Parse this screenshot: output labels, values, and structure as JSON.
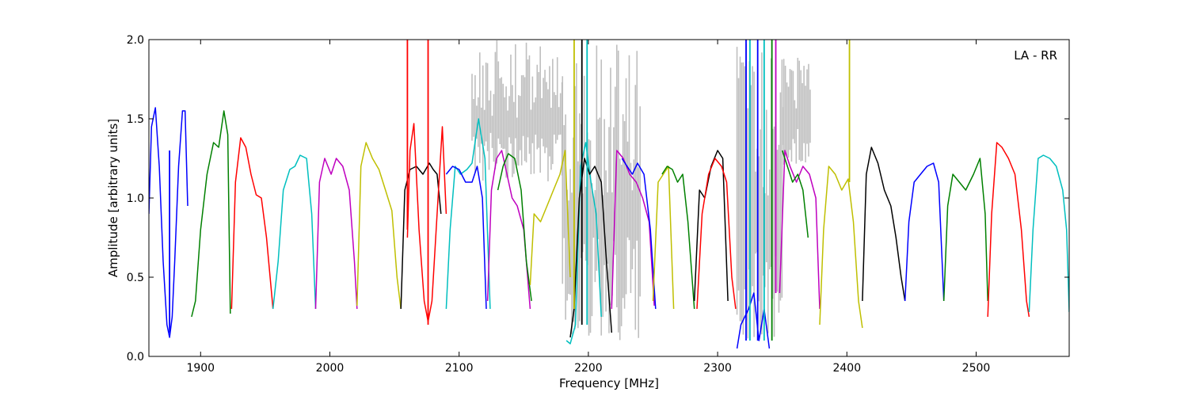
{
  "chart_data": {
    "type": "line",
    "title": "",
    "annotation": "LA - RR",
    "xlabel": "Frequency [MHz]",
    "ylabel": "Amplitude [arbitrary units]",
    "xlim": [
      1860,
      2572
    ],
    "ylim": [
      0.0,
      2.0
    ],
    "xticks": [
      1900,
      2000,
      2100,
      2200,
      2300,
      2400,
      2500
    ],
    "xtick_labels": [
      "1900",
      "2000",
      "2100",
      "2200",
      "2300",
      "2400",
      "2500"
    ],
    "yticks": [
      0.0,
      0.5,
      1.0,
      1.5,
      2.0
    ],
    "ytick_labels": [
      "0.0",
      "0.5",
      "1.0",
      "1.5",
      "2.0"
    ],
    "grid": false,
    "background_trace_color": "#bfbfbf",
    "series_colors": [
      "#0000ff",
      "#008000",
      "#ff0000",
      "#00bfbf",
      "#bf00bf",
      "#bfbf00",
      "#000000"
    ],
    "series": [
      {
        "color": "#0000ff",
        "x": [
          1860,
          1862,
          1865,
          1868,
          1871,
          1874,
          1876,
          1878,
          1880,
          1883,
          1886,
          1888,
          1890
        ],
        "y": [
          0.9,
          1.45,
          1.57,
          1.2,
          0.6,
          0.2,
          0.12,
          0.25,
          0.6,
          1.2,
          1.55,
          1.55,
          0.95
        ]
      },
      {
        "color": "#008000",
        "x": [
          1893,
          1896,
          1900,
          1905,
          1910,
          1914,
          1918,
          1921,
          1923
        ],
        "y": [
          0.25,
          0.35,
          0.8,
          1.15,
          1.35,
          1.32,
          1.55,
          1.4,
          0.27
        ]
      },
      {
        "color": "#ff0000",
        "x": [
          1924,
          1927,
          1931,
          1935,
          1939,
          1943,
          1947,
          1951,
          1956
        ],
        "y": [
          0.3,
          1.1,
          1.38,
          1.32,
          1.15,
          1.02,
          1.0,
          0.75,
          0.3
        ]
      },
      {
        "color": "#00bfbf",
        "x": [
          1956,
          1960,
          1964,
          1969,
          1973,
          1977,
          1982,
          1986,
          1989
        ],
        "y": [
          0.3,
          0.6,
          1.05,
          1.18,
          1.2,
          1.27,
          1.25,
          0.9,
          0.3
        ]
      },
      {
        "color": "#bf00bf",
        "x": [
          1989,
          1992,
          1996,
          2001,
          2005,
          2010,
          2015,
          2019,
          2021
        ],
        "y": [
          0.3,
          1.1,
          1.25,
          1.15,
          1.25,
          1.2,
          1.05,
          0.6,
          0.3
        ]
      },
      {
        "color": "#bfbf00",
        "x": [
          2021,
          2024,
          2028,
          2033,
          2038,
          2043,
          2048,
          2052,
          2055
        ],
        "y": [
          0.32,
          1.2,
          1.35,
          1.25,
          1.18,
          1.05,
          0.92,
          0.5,
          0.3
        ]
      },
      {
        "color": "#000000",
        "x": [
          2055,
          2058,
          2062,
          2067,
          2072,
          2077,
          2080,
          2083,
          2086
        ],
        "y": [
          0.3,
          1.05,
          1.18,
          1.2,
          1.15,
          1.22,
          1.18,
          1.15,
          0.9
        ]
      },
      {
        "color": "#ff0000",
        "x": [
          2060,
          2062,
          2065,
          2069,
          2073,
          2076,
          2079,
          2083,
          2087,
          2090
        ],
        "y": [
          0.75,
          1.3,
          1.47,
          0.8,
          0.35,
          0.22,
          0.35,
          0.9,
          1.45,
          0.9
        ]
      },
      {
        "color": "#00bfbf",
        "x": [
          2090,
          2093,
          2097,
          2101,
          2106,
          2110,
          2115,
          2120,
          2124
        ],
        "y": [
          0.3,
          0.8,
          1.2,
          1.15,
          1.18,
          1.22,
          1.5,
          1.25,
          0.3
        ]
      },
      {
        "color": "#0000ff",
        "x": [
          2090,
          2095,
          2100,
          2105,
          2110,
          2114,
          2118,
          2121
        ],
        "y": [
          1.15,
          1.2,
          1.18,
          1.1,
          1.1,
          1.2,
          1.0,
          0.3
        ]
      },
      {
        "color": "#bf00bf",
        "x": [
          2122,
          2125,
          2129,
          2133,
          2137,
          2141,
          2145,
          2150,
          2155
        ],
        "y": [
          0.35,
          1.05,
          1.25,
          1.3,
          1.15,
          1.0,
          0.95,
          0.8,
          0.3
        ]
      },
      {
        "color": "#008000",
        "x": [
          2130,
          2134,
          2138,
          2143,
          2148,
          2152,
          2156
        ],
        "y": [
          1.05,
          1.2,
          1.28,
          1.25,
          1.05,
          0.6,
          0.35
        ]
      },
      {
        "color": "#bfbf00",
        "x": [
          2155,
          2158,
          2163,
          2168,
          2173,
          2178,
          2182,
          2186
        ],
        "y": [
          0.45,
          0.9,
          0.85,
          0.95,
          1.05,
          1.15,
          1.3,
          0.5
        ]
      },
      {
        "color": "#00bfbf",
        "x": [
          2183,
          2186,
          2190,
          2194,
          2198,
          2202,
          2206,
          2210
        ],
        "y": [
          0.1,
          0.08,
          0.2,
          1.2,
          1.35,
          1.1,
          0.9,
          0.25
        ]
      },
      {
        "color": "#000000",
        "x": [
          2186,
          2189,
          2193,
          2197,
          2201,
          2205,
          2210,
          2214,
          2218
        ],
        "y": [
          0.12,
          0.3,
          1.0,
          1.25,
          1.15,
          1.2,
          1.1,
          0.6,
          0.15
        ]
      },
      {
        "color": "#bf00bf",
        "x": [
          2218,
          2222,
          2227,
          2232,
          2237,
          2242,
          2247,
          2251
        ],
        "y": [
          0.3,
          1.3,
          1.25,
          1.15,
          1.1,
          1.0,
          0.85,
          0.32
        ]
      },
      {
        "color": "#0000ff",
        "x": [
          2226,
          2230,
          2234,
          2238,
          2243,
          2248,
          2252
        ],
        "y": [
          1.25,
          1.2,
          1.15,
          1.22,
          1.15,
          0.8,
          0.3
        ]
      },
      {
        "color": "#bfbf00",
        "x": [
          2250,
          2254,
          2258,
          2262,
          2266
        ],
        "y": [
          0.35,
          1.1,
          1.15,
          1.2,
          0.3
        ]
      },
      {
        "color": "#008000",
        "x": [
          2257,
          2261,
          2265,
          2269,
          2273,
          2277,
          2282
        ],
        "y": [
          1.15,
          1.2,
          1.18,
          1.1,
          1.15,
          0.85,
          0.3
        ]
      },
      {
        "color": "#000000",
        "x": [
          2282,
          2286,
          2290,
          2295,
          2300,
          2304,
          2308
        ],
        "y": [
          0.35,
          1.05,
          1.0,
          1.2,
          1.3,
          1.25,
          0.35
        ]
      },
      {
        "color": "#ff0000",
        "x": [
          2284,
          2288,
          2293,
          2298,
          2303,
          2307,
          2311,
          2314
        ],
        "y": [
          0.3,
          0.9,
          1.15,
          1.25,
          1.2,
          1.1,
          0.5,
          0.3
        ]
      },
      {
        "color": "#0000ff",
        "x": [
          2315,
          2318,
          2321,
          2324,
          2328,
          2332,
          2336,
          2340
        ],
        "y": [
          0.05,
          0.2,
          0.25,
          0.3,
          0.4,
          0.1,
          0.3,
          0.05
        ]
      },
      {
        "color": "#bf00bf",
        "x": [
          2348,
          2352,
          2356,
          2361,
          2366,
          2371,
          2376,
          2379
        ],
        "y": [
          0.4,
          1.3,
          1.2,
          1.1,
          1.2,
          1.15,
          1.0,
          0.3
        ]
      },
      {
        "color": "#008000",
        "x": [
          2350,
          2354,
          2358,
          2362,
          2366,
          2370
        ],
        "y": [
          1.3,
          1.2,
          1.1,
          1.15,
          1.05,
          0.75
        ]
      },
      {
        "color": "#bfbf00",
        "x": [
          2379,
          2382,
          2386,
          2391,
          2396,
          2401,
          2405,
          2409,
          2412
        ],
        "y": [
          0.2,
          0.8,
          1.2,
          1.15,
          1.05,
          1.12,
          0.85,
          0.35,
          0.18
        ]
      },
      {
        "color": "#000000",
        "x": [
          2412,
          2415,
          2419,
          2424,
          2429,
          2434,
          2438,
          2442,
          2445
        ],
        "y": [
          0.35,
          1.15,
          1.32,
          1.22,
          1.05,
          0.95,
          0.75,
          0.5,
          0.35
        ]
      },
      {
        "color": "#0000ff",
        "x": [
          2445,
          2448,
          2452,
          2457,
          2462,
          2467,
          2471,
          2475
        ],
        "y": [
          0.35,
          0.85,
          1.1,
          1.15,
          1.2,
          1.22,
          1.1,
          0.35
        ]
      },
      {
        "color": "#008000",
        "x": [
          2475,
          2478,
          2482,
          2487,
          2492,
          2498,
          2503,
          2507,
          2509
        ],
        "y": [
          0.35,
          0.95,
          1.15,
          1.1,
          1.05,
          1.15,
          1.25,
          0.9,
          0.35
        ]
      },
      {
        "color": "#ff0000",
        "x": [
          2509,
          2512,
          2516,
          2520,
          2525,
          2530,
          2535,
          2539,
          2541
        ],
        "y": [
          0.25,
          0.9,
          1.35,
          1.32,
          1.25,
          1.15,
          0.8,
          0.35,
          0.25
        ]
      },
      {
        "color": "#00bfbf",
        "x": [
          2541,
          2544,
          2548,
          2552,
          2557,
          2562,
          2567,
          2570,
          2572
        ],
        "y": [
          0.28,
          0.8,
          1.25,
          1.27,
          1.25,
          1.2,
          1.05,
          0.8,
          0.28
        ]
      }
    ],
    "spikes": [
      {
        "color": "#bfbf00",
        "x": 2189,
        "y0": 0.3,
        "y1": 2.0
      },
      {
        "color": "#000000",
        "x": 2195,
        "y0": 0.2,
        "y1": 2.0
      },
      {
        "color": "#00bfbf",
        "x": 2199,
        "y0": 0.2,
        "y1": 2.0
      },
      {
        "color": "#0000ff",
        "x": 2322,
        "y0": 0.1,
        "y1": 2.0
      },
      {
        "color": "#00bfbf",
        "x": 2325,
        "y0": 0.1,
        "y1": 2.0
      },
      {
        "color": "#0000ff",
        "x": 2331,
        "y0": 0.1,
        "y1": 2.0
      },
      {
        "color": "#00bfbf",
        "x": 2336,
        "y0": 0.1,
        "y1": 2.0
      },
      {
        "color": "#008000",
        "x": 2342,
        "y0": 0.1,
        "y1": 2.0
      },
      {
        "color": "#bf00bf",
        "x": 2345,
        "y0": 0.4,
        "y1": 2.0
      },
      {
        "color": "#ff0000",
        "x": 2060,
        "y0": 0.8,
        "y1": 2.0
      },
      {
        "color": "#ff0000",
        "x": 2076,
        "y0": 0.2,
        "y1": 2.0
      },
      {
        "color": "#bfbf00",
        "x": 2402,
        "y0": 1.1,
        "y1": 2.0
      },
      {
        "color": "#0000ff",
        "x": 1876,
        "y0": 0.15,
        "y1": 1.3
      }
    ],
    "background_bands": [
      {
        "x0": 2110,
        "x1": 2180,
        "y_low": 1.1,
        "y_high": 2.0
      },
      {
        "x0": 2180,
        "x1": 2240,
        "y_low": 0.1,
        "y_high": 2.0
      },
      {
        "x0": 2315,
        "x1": 2350,
        "y_low": 0.05,
        "y_high": 2.0
      },
      {
        "x0": 2350,
        "x1": 2372,
        "y_low": 1.2,
        "y_high": 1.9
      }
    ]
  }
}
